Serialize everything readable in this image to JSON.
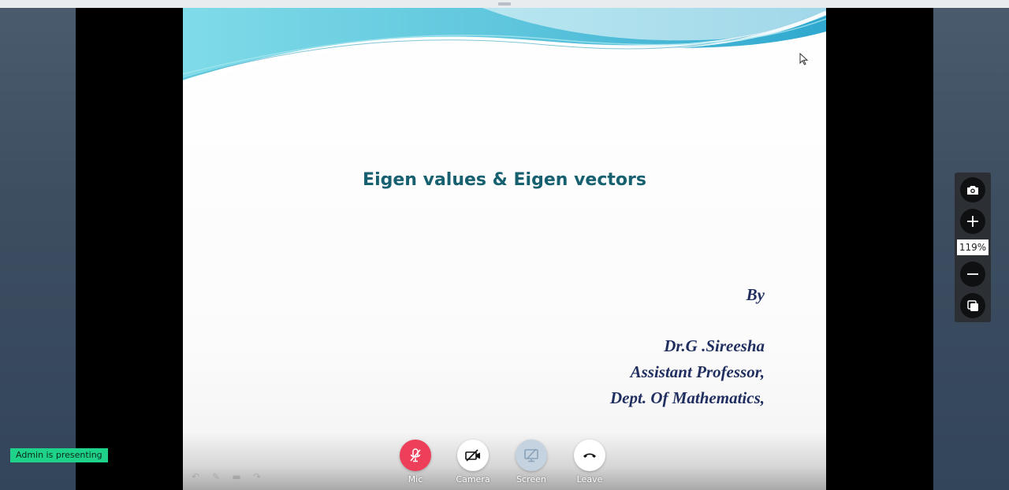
{
  "slide": {
    "title": "Eigen values & Eigen vectors",
    "by": "By",
    "author_name": "Dr.G .Sireesha",
    "author_role": "Assistant Professor,",
    "author_dept": "Dept. Of Mathematics,"
  },
  "controls": {
    "mic_label": "Mic",
    "camera_label": "Camera",
    "screen_label": "Screen",
    "leave_label": "Leave",
    "mic_color": "#ee3f5a",
    "screen_color": "#c5d3e0"
  },
  "zoom": {
    "value": "119%",
    "icons": [
      "camera-snapshot-icon",
      "plus-icon",
      "minus-icon",
      "copy-icon"
    ]
  },
  "status": {
    "presenting_text": "Admin is presenting",
    "presenting_color": "#1fd28a"
  },
  "theme": {
    "title_color": "#17606f",
    "author_color": "#1f2e5e"
  }
}
